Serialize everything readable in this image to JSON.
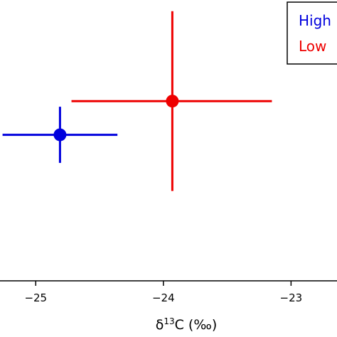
{
  "chart_data": {
    "type": "scatter",
    "xlabel_prefix": "δ",
    "xlabel_superscript": "13",
    "xlabel_suffix": "C (‰)",
    "ylabel": "",
    "x_ticks": [
      -25,
      -24,
      -23
    ],
    "x_tick_labels": [
      "−25",
      "−24",
      "−23"
    ],
    "xlim": [
      -25.28,
      -22.64
    ],
    "ylim": [
      0,
      1
    ],
    "grid": false,
    "legend_position": "top-right",
    "series": [
      {
        "name": "High",
        "color": "#0000dd",
        "x": -24.81,
        "y": 0.52,
        "x_error": [
          0.45,
          0.45
        ],
        "y_error": [
          0.1,
          0.1
        ]
      },
      {
        "name": "Low",
        "color": "#ee0000",
        "x": -23.93,
        "y": 0.64,
        "x_error": [
          0.79,
          0.78
        ],
        "y_error": [
          0.32,
          0.32
        ]
      }
    ]
  }
}
